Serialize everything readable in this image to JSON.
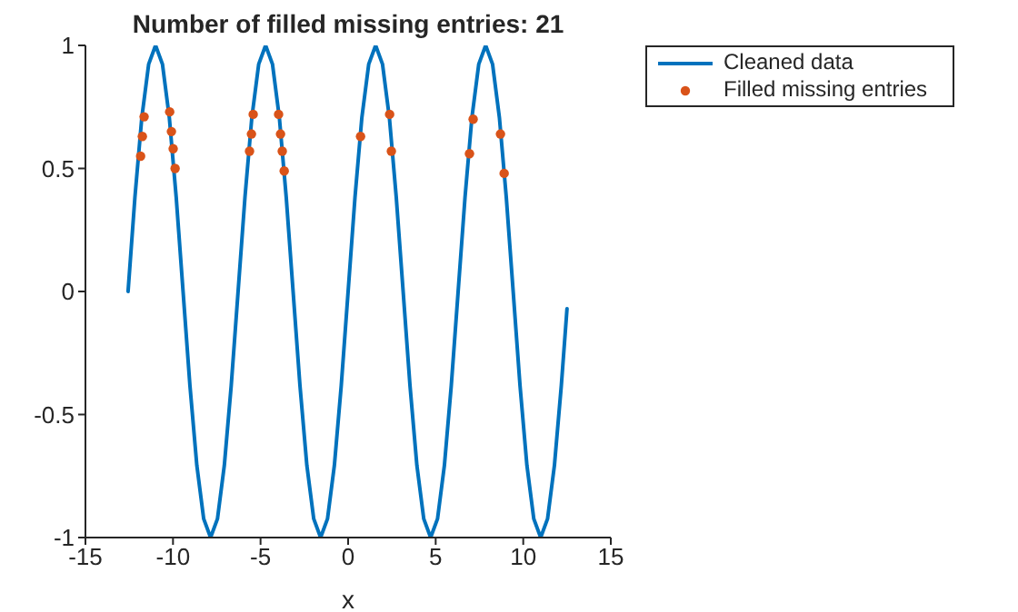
{
  "chart_data": {
    "type": "line",
    "title": "Number of filled missing entries: 21",
    "xlabel": "x",
    "xlim": [
      -15,
      15
    ],
    "xticks": [
      -15,
      -10,
      -5,
      0,
      5,
      10,
      15
    ],
    "ylim": [
      -1,
      1
    ],
    "yticks": [
      -1,
      -0.5,
      0,
      0.5,
      1
    ],
    "legend": "top right",
    "series": [
      {
        "name": "Cleaned data",
        "color": "#0072bd",
        "marker": "none",
        "line_style": "solid",
        "x": [
          -12.566,
          -12.174,
          -11.781,
          -11.388,
          -10.996,
          -10.603,
          -10.21,
          -9.817,
          -9.425,
          -9.032,
          -8.639,
          -8.247,
          -7.854,
          -7.461,
          -7.069,
          -6.676,
          -6.283,
          -5.89,
          -5.498,
          -5.105,
          -4.712,
          -4.32,
          -3.927,
          -3.534,
          -3.142,
          -2.749,
          -2.356,
          -1.963,
          -1.571,
          -1.178,
          -0.785,
          -0.393,
          0,
          0.393,
          0.785,
          1.178,
          1.571,
          1.963,
          2.356,
          2.749,
          3.142,
          3.534,
          3.927,
          4.32,
          4.712,
          5.105,
          5.498,
          5.89,
          6.283,
          6.676,
          7.069,
          7.461,
          7.854,
          8.247,
          8.639,
          9.032,
          9.425,
          9.817,
          10.21,
          10.603,
          10.996,
          11.388,
          11.781,
          12.174,
          12.5
        ],
        "values": [
          0,
          0.383,
          0.707,
          0.924,
          1,
          0.924,
          0.707,
          0.383,
          0,
          -0.383,
          -0.707,
          -0.924,
          -1,
          -0.924,
          -0.707,
          -0.383,
          0,
          0.383,
          0.707,
          0.924,
          1,
          0.924,
          0.707,
          0.383,
          0,
          -0.383,
          -0.707,
          -0.924,
          -1,
          -0.924,
          -0.707,
          -0.383,
          0,
          0.383,
          0.707,
          0.924,
          1,
          0.924,
          0.707,
          0.383,
          0,
          -0.383,
          -0.707,
          -0.924,
          -1,
          -0.924,
          -0.707,
          -0.383,
          0,
          0.383,
          0.707,
          0.924,
          1,
          0.924,
          0.707,
          0.383,
          0,
          -0.383,
          -0.707,
          -0.924,
          -1,
          -0.924,
          -0.707,
          -0.383,
          -0.07
        ]
      },
      {
        "name": "Filled missing entries",
        "type": "scatter",
        "color": "#d95319",
        "marker": "circle",
        "x": [
          -11.65,
          -11.75,
          -11.85,
          -10.19,
          -10.09,
          -9.99,
          -9.88,
          -5.42,
          -5.52,
          -5.63,
          -3.97,
          -3.86,
          -3.76,
          -3.65,
          0.71,
          2.37,
          2.47,
          7.14,
          6.93,
          8.7,
          8.91
        ],
        "values": [
          0.71,
          0.63,
          0.55,
          0.73,
          0.65,
          0.58,
          0.5,
          0.72,
          0.64,
          0.57,
          0.72,
          0.64,
          0.57,
          0.49,
          0.63,
          0.72,
          0.57,
          0.7,
          0.56,
          0.64,
          0.48
        ]
      }
    ]
  }
}
